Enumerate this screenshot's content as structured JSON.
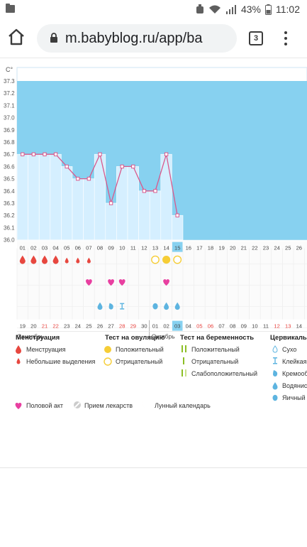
{
  "status": {
    "battery": "43%",
    "time": "11:02"
  },
  "browser": {
    "url": "m.babyblog.ru/app/ba",
    "tab_count": "3"
  },
  "chart_data": {
    "type": "line",
    "ylabel": "C°",
    "y_ticks": [
      "37.3",
      "37.2",
      "37.1",
      "37.0",
      "36.9",
      "36.8",
      "36.7",
      "36.6",
      "36.5",
      "36.4",
      "36.3",
      "36.2",
      "36.1",
      "36.0"
    ],
    "ylim": [
      36.0,
      37.3
    ],
    "cycle_days": [
      "01",
      "02",
      "03",
      "04",
      "05",
      "06",
      "07",
      "08",
      "09",
      "10",
      "11",
      "12",
      "13",
      "14",
      "15",
      "16",
      "17",
      "18",
      "19",
      "20",
      "21",
      "22",
      "23",
      "24",
      "25",
      "26"
    ],
    "current_day": "15",
    "temperatures": [
      36.7,
      36.7,
      36.7,
      36.7,
      36.6,
      36.5,
      36.5,
      36.7,
      36.3,
      36.6,
      36.6,
      36.4,
      36.4,
      36.7,
      36.2
    ],
    "dates": [
      "19",
      "20",
      "21",
      "22",
      "23",
      "24",
      "25",
      "26",
      "27",
      "28",
      "29",
      "30",
      "01",
      "02",
      "03",
      "04",
      "05",
      "06",
      "07",
      "08",
      "09",
      "10",
      "11",
      "12",
      "13",
      "14"
    ],
    "red_dates": [
      2,
      3,
      9,
      10,
      16,
      17,
      23,
      24
    ],
    "current_date_index": 14,
    "month_labels": [
      "Сентябрь",
      "Октябрь"
    ],
    "menstruation_days": [
      0,
      1,
      2,
      3
    ],
    "spotting_days": [
      4,
      5,
      6
    ],
    "ovulation_positive_days": [
      13
    ],
    "ovulation_negative_days": [
      12,
      14
    ],
    "intercourse_days": [
      6,
      8,
      9,
      13
    ],
    "moon_day": 19,
    "cervical_days": [
      {
        "day": 7,
        "kind": "watery"
      },
      {
        "day": 8,
        "kind": "creamy"
      },
      {
        "day": 9,
        "kind": "sticky"
      },
      {
        "day": 12,
        "kind": "egg"
      },
      {
        "day": 13,
        "kind": "watery"
      },
      {
        "day": 14,
        "kind": "watery"
      }
    ],
    "colors": {
      "sky": "#87d1f0",
      "bar": "#d5efff",
      "line": "#d9598c",
      "drop": "#e7473f",
      "heart": "#e83fa0",
      "ovulation": "#f6cd36",
      "cervical": "#5db4e0",
      "preg": "#8cbf26",
      "moon": "#f0a020",
      "red_date": "#e8403c"
    }
  },
  "legend": {
    "menstruation": {
      "title": "Менструация",
      "items": [
        "Менструация",
        "Небольшие выделения"
      ]
    },
    "ovulation": {
      "title": "Тест на овуляцию",
      "items": [
        "Положительный",
        "Отрицательный"
      ]
    },
    "pregnancy": {
      "title": "Тест на беременность",
      "items": [
        "Положительный",
        "Отрицательный",
        "Слабоположительный"
      ]
    },
    "cervical": {
      "title": "Цервикальн",
      "items": [
        "Сухо",
        "Клейкая",
        "Кремооб",
        "Водянист",
        "Яичный б"
      ]
    },
    "extra": [
      "Половой акт",
      "Прием лекарств",
      "Лунный календарь"
    ]
  }
}
